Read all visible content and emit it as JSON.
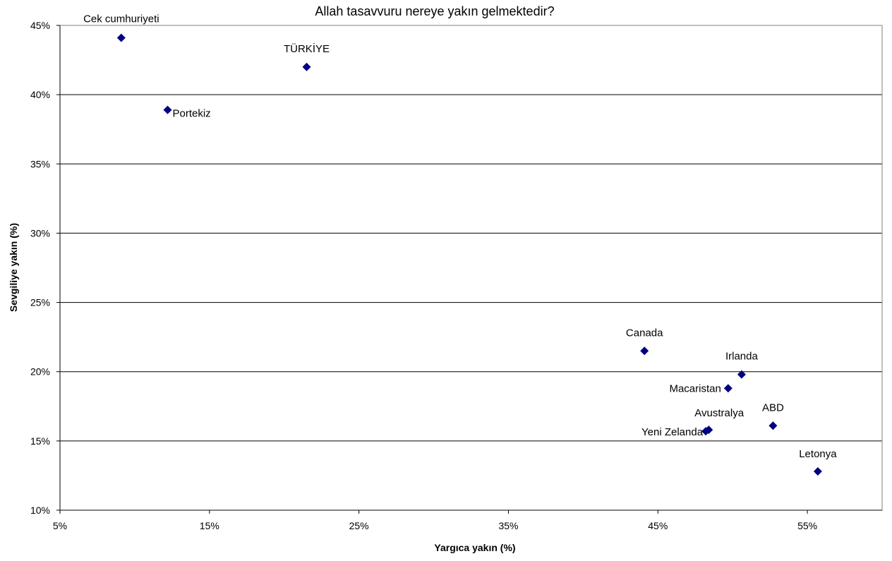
{
  "chart_data": {
    "type": "scatter",
    "title": "Allah tasavvuru nereye yakın gelmektedir?",
    "xlabel": "Yargıca yakın (%)",
    "ylabel": "Sevgiliye yakın (%)",
    "xlim": [
      5,
      60
    ],
    "ylim": [
      10,
      45
    ],
    "xticks": [
      5,
      15,
      25,
      35,
      45,
      55
    ],
    "yticks": [
      10,
      15,
      20,
      25,
      30,
      35,
      40,
      45
    ],
    "xtick_labels": [
      "5%",
      "15%",
      "25%",
      "35%",
      "45%",
      "55%"
    ],
    "ytick_labels": [
      "10%",
      "15%",
      "20%",
      "25%",
      "30%",
      "35%",
      "40%",
      "45%"
    ],
    "grid": "horizontal",
    "marker": "diamond",
    "marker_color": "#000080",
    "points": [
      {
        "label": "Cek cumhuriyeti",
        "x": 9.1,
        "y": 44.1
      },
      {
        "label": "TÜRKİYE",
        "x": 21.5,
        "y": 42.0
      },
      {
        "label": "Portekiz",
        "x": 12.2,
        "y": 38.9
      },
      {
        "label": "Canada",
        "x": 44.1,
        "y": 21.5
      },
      {
        "label": "Irlanda",
        "x": 50.6,
        "y": 19.8
      },
      {
        "label": "Macaristan",
        "x": 49.7,
        "y": 18.8
      },
      {
        "label": "ABD",
        "x": 52.7,
        "y": 16.1
      },
      {
        "label": "Avustralya",
        "x": 48.4,
        "y": 15.8
      },
      {
        "label": "Yeni Zelanda",
        "x": 48.2,
        "y": 15.7
      },
      {
        "label": "Letonya",
        "x": 55.7,
        "y": 12.8
      }
    ]
  }
}
